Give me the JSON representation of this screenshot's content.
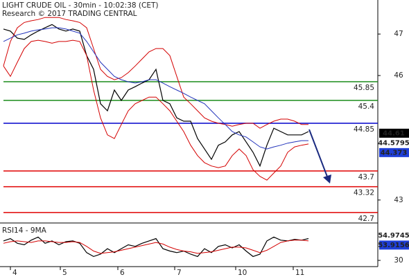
{
  "chart_data": [
    {
      "type": "line",
      "title": "LIGHT CRUDE OIL - 30min - 10:02:38 (CET)",
      "subtitle": "Research © 2017 TRADING CENTRAL",
      "x": [
        0,
        1,
        2,
        3,
        4,
        5,
        6,
        7,
        8,
        9,
        10,
        11,
        12,
        13,
        14,
        15,
        16,
        17,
        18,
        19,
        20,
        21,
        22,
        23,
        24,
        25,
        26,
        27,
        28,
        29,
        30,
        31,
        32,
        33,
        34,
        35,
        36,
        37,
        38,
        39,
        40,
        41,
        42,
        43,
        44
      ],
      "xlim": [
        -0.5,
        54
      ],
      "ylim": [
        42.48,
        47.82
      ],
      "yticks": [
        43,
        46,
        47
      ],
      "series": [
        {
          "color": "#000000",
          "values": [
            47.12,
            47.07,
            46.9,
            46.87,
            46.98,
            47.07,
            47.15,
            47.23,
            47.12,
            47.07,
            47.12,
            47.07,
            46.48,
            46.15,
            45.32,
            45.15,
            45.65,
            45.4,
            45.65,
            45.73,
            45.82,
            45.9,
            46.15,
            45.4,
            45.32,
            44.98,
            44.9,
            44.9,
            44.48,
            44.23,
            43.98,
            44.32,
            44.4,
            44.57,
            44.65,
            44.4,
            44.15,
            43.82,
            44.32,
            44.73,
            44.65,
            44.57,
            44.57,
            44.57,
            44.65
          ]
        },
        {
          "color": "#d40000",
          "values": [
            46.23,
            46.82,
            47.15,
            47.28,
            47.32,
            47.35,
            47.4,
            47.4,
            47.4,
            47.35,
            47.32,
            47.28,
            47.15,
            46.65,
            46.15,
            45.98,
            45.9,
            45.95,
            46.07,
            46.23,
            46.4,
            46.57,
            46.65,
            46.65,
            46.48,
            45.98,
            45.48,
            45.32,
            45.15,
            44.98,
            44.9,
            44.85,
            44.82,
            44.78,
            44.82,
            44.85,
            44.85,
            44.73,
            44.82,
            44.9,
            44.95,
            44.95,
            44.9,
            44.82,
            44.82
          ]
        },
        {
          "color": "#d40000",
          "values": [
            46.23,
            45.98,
            46.32,
            46.65,
            46.82,
            46.85,
            46.82,
            46.78,
            46.82,
            46.82,
            46.85,
            46.82,
            46.48,
            45.65,
            44.98,
            44.57,
            44.48,
            44.82,
            45.15,
            45.32,
            45.4,
            45.48,
            45.48,
            45.32,
            45.15,
            44.9,
            44.65,
            44.32,
            44.07,
            43.9,
            43.82,
            43.78,
            43.82,
            44.07,
            44.23,
            44.07,
            43.73,
            43.57,
            43.48,
            43.65,
            43.82,
            44.15,
            44.28,
            44.32,
            44.35
          ]
        },
        {
          "color": "#2233bb",
          "values": [
            46.82,
            46.9,
            46.98,
            47.02,
            47.07,
            47.1,
            47.12,
            47.15,
            47.15,
            47.12,
            47.07,
            47.02,
            46.82,
            46.57,
            46.32,
            46.15,
            45.98,
            45.9,
            45.85,
            45.82,
            45.85,
            45.9,
            45.9,
            45.82,
            45.73,
            45.65,
            45.57,
            45.48,
            45.4,
            45.32,
            45.15,
            44.98,
            44.82,
            44.65,
            44.57,
            44.52,
            44.4,
            44.28,
            44.23,
            44.28,
            44.32,
            44.37,
            44.4,
            44.43,
            44.43
          ]
        }
      ],
      "levels": [
        {
          "value": 45.85,
          "color": "#1a8c1a"
        },
        {
          "value": 45.4,
          "color": "#1a8c1a"
        },
        {
          "value": 44.85,
          "color": "#0000cc"
        },
        {
          "value": 43.7,
          "color": "#e00000"
        },
        {
          "value": 43.32,
          "color": "#e00000"
        },
        {
          "value": 42.7,
          "color": "#e00000"
        }
      ],
      "price_tags": [
        {
          "value": 44.61,
          "color": "#ffffff",
          "background": "#000000"
        },
        {
          "value": 44.5795,
          "color": "#e00000",
          "background": "#ffffff"
        },
        {
          "value": 44.373,
          "color": "#ffffff",
          "background": "#1f3fd8"
        }
      ]
    },
    {
      "type": "line",
      "title": "RSI14 - 9MA",
      "x": [
        0,
        1,
        2,
        3,
        4,
        5,
        6,
        7,
        8,
        9,
        10,
        11,
        12,
        13,
        14,
        15,
        16,
        17,
        18,
        19,
        20,
        21,
        22,
        23,
        24,
        25,
        26,
        27,
        28,
        29,
        30,
        31,
        32,
        33,
        34,
        35,
        36,
        37,
        38,
        39,
        40,
        41,
        42,
        43,
        44
      ],
      "xlim": [
        -0.5,
        54
      ],
      "xticks": [
        {
          "value": 1,
          "label": "4"
        },
        {
          "value": 8.2,
          "label": "5"
        },
        {
          "value": 16.5,
          "label": "6"
        },
        {
          "value": 24.7,
          "label": "7"
        },
        {
          "value": 33.5,
          "label": "10"
        },
        {
          "value": 41.8,
          "label": "11"
        }
      ],
      "ylim": [
        22,
        78
      ],
      "yticks": [
        30
      ],
      "series": [
        {
          "color": "#000000",
          "values": [
            55,
            58,
            52,
            50,
            56,
            60,
            52,
            55,
            50,
            54,
            55,
            52,
            40,
            35,
            38,
            45,
            40,
            45,
            50,
            48,
            52,
            55,
            58,
            45,
            42,
            40,
            42,
            38,
            35,
            45,
            40,
            48,
            50,
            46,
            50,
            42,
            35,
            38,
            55,
            60,
            56,
            55,
            57,
            56,
            58
          ]
        },
        {
          "color": "#d40000",
          "values": [
            52,
            54,
            55,
            54,
            53,
            55,
            55,
            54,
            53,
            53,
            54,
            53,
            48,
            42,
            39,
            40,
            41,
            43,
            45,
            47,
            49,
            51,
            53,
            51,
            47,
            44,
            42,
            41,
            39,
            40,
            41,
            43,
            45,
            47,
            47,
            46,
            43,
            40,
            43,
            48,
            53,
            55,
            56,
            56,
            55
          ]
        }
      ],
      "price_tags": [
        {
          "value": 54.9745,
          "color": "#e00000",
          "background": "#ffffff"
        },
        {
          "value": 53.9156,
          "color": "#ffffff",
          "background": "#1f3fd8"
        }
      ]
    }
  ]
}
